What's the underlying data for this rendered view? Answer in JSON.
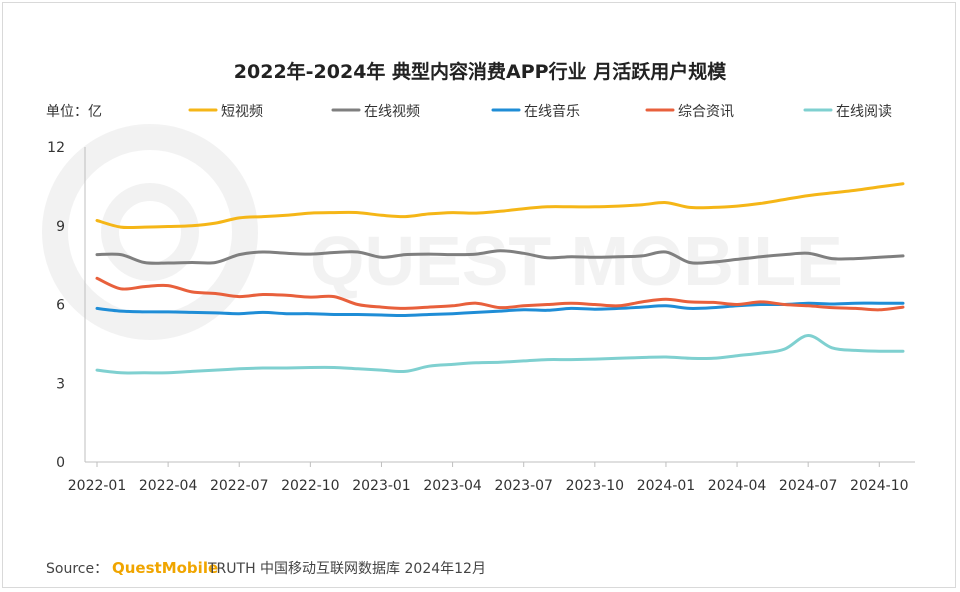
{
  "chart_data": {
    "type": "line",
    "title": "2022年-2024年 典型内容消费APP行业 月活跃用户规模",
    "unit_label": "单位：亿",
    "ylim": [
      0,
      12
    ],
    "yticks": [
      0,
      3,
      6,
      9,
      12
    ],
    "ytick_labels": [
      "0",
      "3",
      "6",
      "9",
      "12"
    ],
    "x_tick_labels": [
      "2022-01",
      "2022-04",
      "2022-07",
      "2022-10",
      "2023-01",
      "2023-04",
      "2023-07",
      "2023-10",
      "2024-01",
      "2024-04",
      "2024-07",
      "2024-10"
    ],
    "x": [
      "2022-01",
      "2022-02",
      "2022-03",
      "2022-04",
      "2022-05",
      "2022-06",
      "2022-07",
      "2022-08",
      "2022-09",
      "2022-10",
      "2022-11",
      "2022-12",
      "2023-01",
      "2023-02",
      "2023-03",
      "2023-04",
      "2023-05",
      "2023-06",
      "2023-07",
      "2023-08",
      "2023-09",
      "2023-10",
      "2023-11",
      "2023-12",
      "2024-01",
      "2024-02",
      "2024-03",
      "2024-04",
      "2024-05",
      "2024-06",
      "2024-07",
      "2024-08",
      "2024-09",
      "2024-10",
      "2024-11"
    ],
    "legend_position": "top",
    "series": [
      {
        "name": "短视频",
        "color": "#f5b617",
        "values": [
          9.2,
          8.95,
          8.95,
          8.97,
          9.0,
          9.1,
          9.3,
          9.35,
          9.4,
          9.48,
          9.5,
          9.5,
          9.4,
          9.35,
          9.45,
          9.5,
          9.48,
          9.55,
          9.65,
          9.72,
          9.72,
          9.72,
          9.75,
          9.8,
          9.88,
          9.7,
          9.7,
          9.75,
          9.85,
          10.0,
          10.15,
          10.25,
          10.35,
          10.48,
          10.6
        ]
      },
      {
        "name": "在线视频",
        "color": "#7f7f7f",
        "values": [
          7.9,
          7.9,
          7.6,
          7.58,
          7.6,
          7.6,
          7.9,
          8.0,
          7.95,
          7.92,
          7.98,
          8.0,
          7.8,
          7.9,
          7.92,
          7.9,
          7.92,
          8.05,
          7.95,
          7.78,
          7.82,
          7.8,
          7.82,
          7.85,
          8.0,
          7.6,
          7.62,
          7.72,
          7.82,
          7.9,
          7.95,
          7.75,
          7.75,
          7.8,
          7.85
        ]
      },
      {
        "name": "在线音乐",
        "color": "#1f8dd6",
        "values": [
          5.85,
          5.75,
          5.72,
          5.72,
          5.7,
          5.68,
          5.65,
          5.7,
          5.65,
          5.65,
          5.62,
          5.62,
          5.6,
          5.58,
          5.62,
          5.65,
          5.7,
          5.75,
          5.8,
          5.78,
          5.85,
          5.82,
          5.85,
          5.9,
          5.95,
          5.85,
          5.88,
          5.95,
          6.0,
          6.0,
          6.05,
          6.02,
          6.05,
          6.05,
          6.05
        ]
      },
      {
        "name": "综合资讯",
        "color": "#e8603c",
        "values": [
          7.0,
          6.6,
          6.68,
          6.72,
          6.48,
          6.42,
          6.3,
          6.38,
          6.35,
          6.28,
          6.3,
          6.0,
          5.9,
          5.85,
          5.9,
          5.95,
          6.05,
          5.88,
          5.95,
          6.0,
          6.05,
          6.0,
          5.95,
          6.1,
          6.2,
          6.1,
          6.08,
          6.0,
          6.1,
          6.0,
          5.95,
          5.88,
          5.85,
          5.8,
          5.9
        ]
      },
      {
        "name": "在线阅读",
        "color": "#7fd0d0",
        "values": [
          3.5,
          3.4,
          3.4,
          3.4,
          3.45,
          3.5,
          3.55,
          3.58,
          3.58,
          3.6,
          3.6,
          3.55,
          3.5,
          3.45,
          3.65,
          3.72,
          3.78,
          3.8,
          3.85,
          3.9,
          3.9,
          3.92,
          3.95,
          3.98,
          4.0,
          3.95,
          3.95,
          4.05,
          4.15,
          4.3,
          4.82,
          4.35,
          4.25,
          4.22,
          4.22
        ]
      }
    ]
  },
  "source": {
    "label": "Source：",
    "brand": "QuestMobile",
    "rest": "TRUTH 中国移动互联网数据库 2024年12月"
  }
}
